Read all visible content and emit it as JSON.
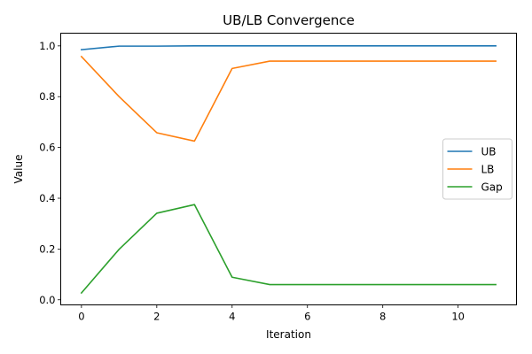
{
  "chart_data": {
    "type": "line",
    "title": "UB/LB Convergence",
    "xlabel": "Iteration",
    "ylabel": "Value",
    "x": [
      0,
      1,
      2,
      3,
      4,
      5,
      6,
      7,
      8,
      9,
      10,
      11
    ],
    "xlim": [
      -0.55,
      11.55
    ],
    "ylim": [
      -0.02,
      1.05
    ],
    "xticks": [
      0,
      2,
      4,
      6,
      8,
      10
    ],
    "yticks": [
      0.0,
      0.2,
      0.4,
      0.6,
      0.8,
      1.0
    ],
    "xtick_labels": [
      "0",
      "2",
      "4",
      "6",
      "8",
      "10"
    ],
    "ytick_labels": [
      "0.0",
      "0.2",
      "0.4",
      "0.6",
      "0.8",
      "1.0"
    ],
    "grid": false,
    "legend_position": "center-right",
    "series": [
      {
        "name": "UB",
        "color": "#1f77b4",
        "values": [
          0.985,
          0.999,
          0.999,
          1.0,
          1.0,
          1.0,
          1.0,
          1.0,
          1.0,
          1.0,
          1.0,
          1.0
        ]
      },
      {
        "name": "LB",
        "color": "#ff7f0e",
        "values": [
          0.958,
          0.8,
          0.658,
          0.625,
          0.911,
          0.94,
          0.94,
          0.94,
          0.94,
          0.94,
          0.94,
          0.94
        ]
      },
      {
        "name": "Gap",
        "color": "#2ca02c",
        "values": [
          0.027,
          0.199,
          0.341,
          0.375,
          0.089,
          0.06,
          0.06,
          0.06,
          0.06,
          0.06,
          0.06,
          0.06
        ]
      }
    ]
  }
}
